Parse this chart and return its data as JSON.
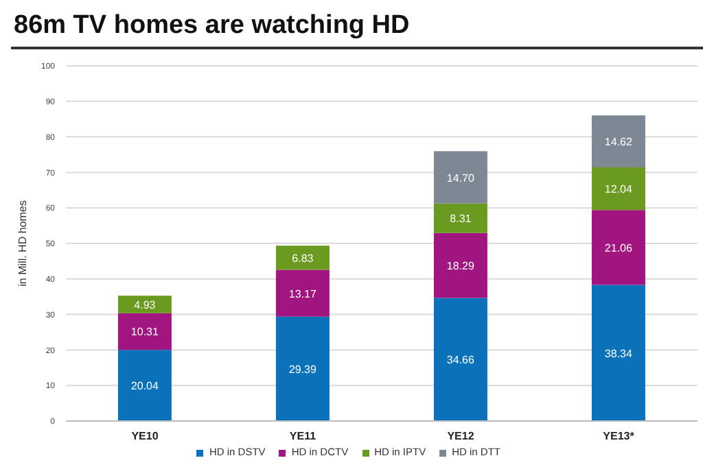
{
  "chart_data": {
    "type": "bar",
    "title": "86m TV homes are watching HD",
    "ylabel": "in Mill. HD homes",
    "categories": [
      "YE10",
      "YE11",
      "YE12",
      "YE13*"
    ],
    "stacked": true,
    "series": [
      {
        "name": "HD in DSTV",
        "color": "#0b72b9",
        "values": [
          20.04,
          29.39,
          34.66,
          38.34
        ],
        "value_labels": [
          "20.04",
          "29.39",
          "34.66",
          "38.34"
        ]
      },
      {
        "name": "HD in DCTV",
        "color": "#a0157f",
        "values": [
          10.31,
          13.17,
          18.29,
          21.06
        ],
        "value_labels": [
          "10.31",
          "13.17",
          "18.29",
          "21.06"
        ]
      },
      {
        "name": "HD in IPTV",
        "color": "#6a9a1f",
        "values": [
          4.93,
          6.83,
          8.31,
          12.04
        ],
        "value_labels": [
          "4.93",
          "6.83",
          "8.31",
          "12.04"
        ]
      },
      {
        "name": "HD in DTT",
        "color": "#7d8894",
        "values": [
          null,
          null,
          14.7,
          14.62
        ],
        "value_labels": [
          null,
          null,
          "14.70",
          "14.62"
        ]
      }
    ],
    "ylim": [
      0,
      100
    ],
    "yticks": [
      0,
      10,
      20,
      30,
      40,
      50,
      60,
      70,
      80,
      90,
      100
    ],
    "grid": "y",
    "legend": "bottom"
  }
}
